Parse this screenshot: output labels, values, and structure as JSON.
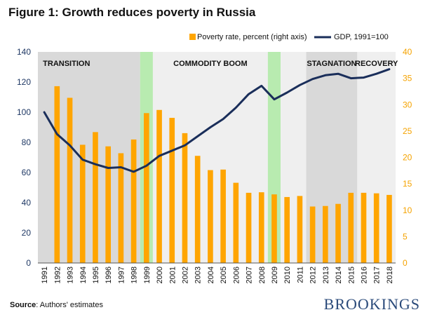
{
  "figure": {
    "title": "Figure 1: Growth reduces poverty in Russia",
    "source_label": "Source",
    "source_text": ": Authors' estimates",
    "logo_text": "BROOKINGS"
  },
  "colors": {
    "bar": "#ffa500",
    "line": "#1a2e5a",
    "left_axis_text": "#1f3864",
    "right_axis_text": "#f5a300",
    "shade_grey": "#d9d9d9",
    "shade_light": "#efefef",
    "shade_green": "#b8ebb0"
  },
  "chart_data": {
    "type": "bar+line",
    "categories": [
      "1991",
      "1992",
      "1993",
      "1994",
      "1995",
      "1996",
      "1997",
      "1998",
      "1999",
      "2000",
      "2001",
      "2002",
      "2003",
      "2004",
      "2005",
      "2006",
      "2007",
      "2008",
      "2009",
      "2010",
      "2011",
      "2012",
      "2013",
      "2014",
      "2015",
      "2016",
      "2017",
      "2018"
    ],
    "series": [
      {
        "name": "Poverty rate, percent (right axis)",
        "type": "bar",
        "axis": "right",
        "values": [
          null,
          33.5,
          31.3,
          22.4,
          24.8,
          22.1,
          20.8,
          23.4,
          28.4,
          29.0,
          27.5,
          24.6,
          20.3,
          17.6,
          17.7,
          15.2,
          13.3,
          13.4,
          13.0,
          12.5,
          12.7,
          10.7,
          10.8,
          11.2,
          13.3,
          13.3,
          13.2,
          12.9
        ]
      },
      {
        "name": "GDP, 1991=100",
        "type": "line",
        "axis": "left",
        "values": [
          100,
          85.5,
          78,
          68.5,
          65.5,
          63,
          63.5,
          60.5,
          64.5,
          71,
          74.5,
          78,
          84,
          90,
          95.5,
          103,
          112,
          117.5,
          108.5,
          113,
          118,
          122,
          124.5,
          125.5,
          122.5,
          123,
          125.5,
          128.5
        ]
      }
    ],
    "left_axis": {
      "ylim": [
        0,
        140
      ],
      "ticks": [
        0,
        20,
        40,
        60,
        80,
        100,
        120,
        140
      ]
    },
    "right_axis": {
      "ylim": [
        0,
        40
      ],
      "ticks": [
        0,
        5,
        10,
        15,
        20,
        25,
        30,
        35,
        40
      ]
    },
    "legend_position": "top",
    "periods": [
      {
        "label": "TRANSITION",
        "start": "1991",
        "end": "1998",
        "shade": "grey"
      },
      {
        "label": "",
        "start": "1999",
        "end": "1999",
        "shade": "green"
      },
      {
        "label": "COMMODITY BOOM",
        "start": "2000",
        "end": "2008",
        "shade": "light"
      },
      {
        "label": "",
        "start": "2009",
        "end": "2009",
        "shade": "green"
      },
      {
        "label": "",
        "start": "2010",
        "end": "2011",
        "shade": "light"
      },
      {
        "label": "STAGNATION",
        "start": "2012",
        "end": "2015",
        "shade": "grey"
      },
      {
        "label": "RECOVERY",
        "start": "2016",
        "end": "2018",
        "shade": "light"
      }
    ]
  }
}
